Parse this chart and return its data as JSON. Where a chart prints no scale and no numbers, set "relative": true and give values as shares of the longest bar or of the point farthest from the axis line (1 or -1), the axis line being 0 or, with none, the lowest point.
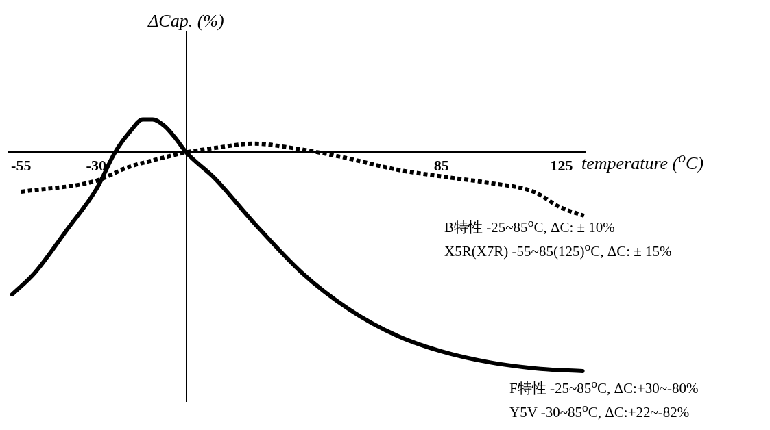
{
  "chart_data": {
    "type": "line",
    "relative": true,
    "ylabel": "ΔCap. (%)",
    "xlabel": "temperature ($^{o}$C)",
    "xlim": [
      -59,
      133
    ],
    "xticks": [
      -55,
      -30,
      85,
      125
    ],
    "grid": false,
    "legend": false,
    "marker": "none",
    "series": [
      {
        "color": "#000000",
        "line_style": "solid",
        "x": [
          -58,
          -50.4,
          -39.5,
          -30,
          -23.7,
          -18.4,
          -14.5,
          -11.2,
          -7.2,
          -3.3,
          0,
          9.6,
          22.4,
          38.5,
          54.5,
          70.5,
          85,
          101,
          118,
          132
        ],
        "values": [
          -0.65,
          -0.55,
          -0.35,
          -0.17,
          0,
          0.1,
          0.15,
          0.15,
          0.12,
          0.06,
          0,
          -0.12,
          -0.32,
          -0.55,
          -0.72,
          -0.84,
          -0.91,
          -0.96,
          -0.99,
          -1
        ]
      },
      {
        "color": "#000000",
        "line_style": "dotted",
        "x": [
          -55,
          -30,
          -19.7,
          -9.2,
          0,
          9.6,
          22.4,
          35.3,
          51.3,
          70.5,
          85,
          101,
          115.7,
          124.4,
          132.5
        ],
        "values": [
          -0.18,
          -0.13,
          -0.07,
          -0.03,
          0,
          0.02,
          0.04,
          0.02,
          -0.02,
          -0.08,
          -0.11,
          -0.14,
          -0.18,
          -0.25,
          -0.29
        ]
      }
    ],
    "annotations": [
      "B特性  -25~85$^{o}$C, ΔC: ± 10%",
      "X5R(X7R) -55~85(125)$^{o}$C, ΔC: ± 15%",
      "F特性   -25~85$^{o}$C, ΔC:+30~-80%",
      "Y5V -30~85$^{o}$C, ΔC:+22~-82%"
    ]
  }
}
